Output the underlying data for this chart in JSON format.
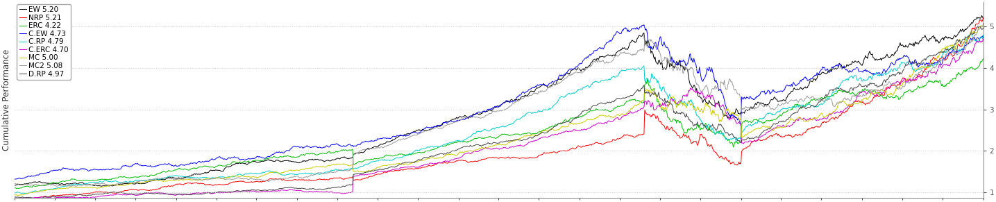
{
  "ylabel": "Cumulative Performance",
  "ylim": [
    0.85,
    5.6
  ],
  "yticks": [
    1,
    2,
    3,
    4,
    5
  ],
  "n_points": 1400,
  "series": [
    {
      "label": "EW 5.20",
      "color": "#000000",
      "final": 5.2,
      "seed": 1,
      "lw": 0.7,
      "erc_mode": false
    },
    {
      "label": "NRP 5.21",
      "color": "#ff0000",
      "final": 5.21,
      "seed": 2,
      "lw": 0.7,
      "erc_mode": false
    },
    {
      "label": "ERC 4.22",
      "color": "#00bb00",
      "final": 4.22,
      "seed": 3,
      "lw": 0.7,
      "erc_mode": true
    },
    {
      "label": "C.EW 4.73",
      "color": "#0000ff",
      "final": 4.73,
      "seed": 4,
      "lw": 0.7,
      "erc_mode": false
    },
    {
      "label": "C.RP 4.79",
      "color": "#00cccc",
      "final": 4.79,
      "seed": 5,
      "lw": 0.7,
      "erc_mode": false
    },
    {
      "label": "C.ERC 4.70",
      "color": "#cc00cc",
      "final": 4.7,
      "seed": 6,
      "lw": 0.7,
      "erc_mode": false
    },
    {
      "label": "MC 5.00",
      "color": "#cccc00",
      "final": 5.0,
      "seed": 7,
      "lw": 0.7,
      "erc_mode": false
    },
    {
      "label": "MC2 5.08",
      "color": "#999999",
      "final": 5.08,
      "seed": 8,
      "lw": 0.7,
      "erc_mode": false
    },
    {
      "label": "D.RP 4.97",
      "color": "#444444",
      "final": 4.97,
      "seed": 9,
      "lw": 0.7,
      "erc_mode": false
    }
  ],
  "background_color": "#ffffff",
  "grid_color": "#cccccc",
  "legend_fontsize": 7.5,
  "ylabel_fontsize": 8.5,
  "tick_fontsize": 7.5
}
